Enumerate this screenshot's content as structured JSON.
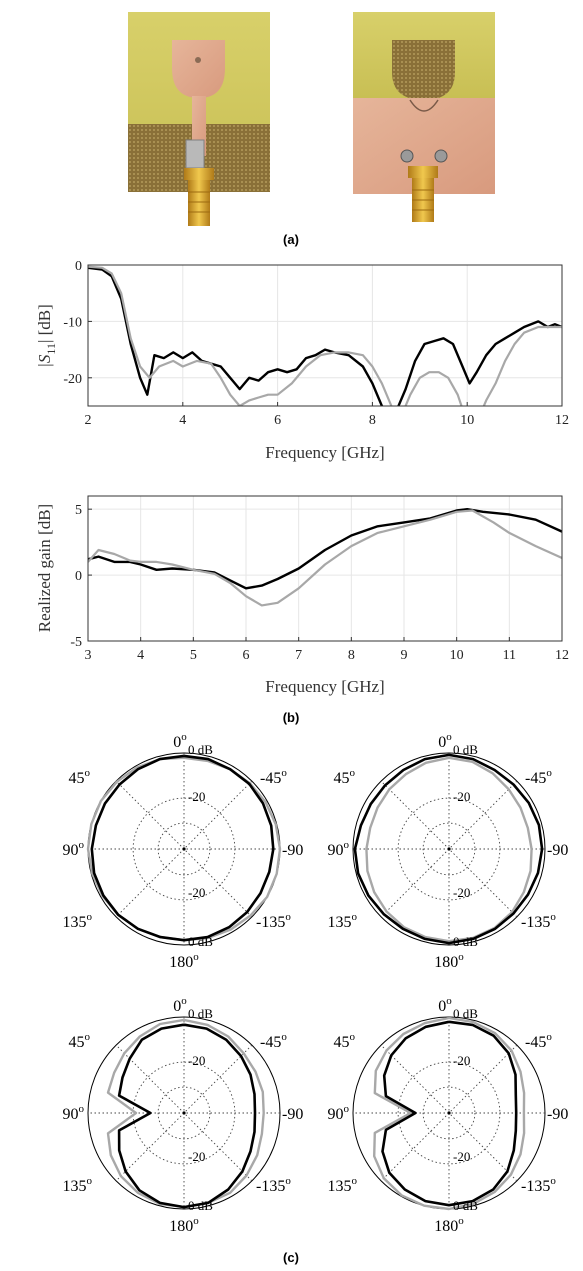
{
  "captions": {
    "a": "(a)",
    "b": "(b)",
    "c": "(c)"
  },
  "colors": {
    "measured": "#000000",
    "simulated": "#a8a8a8",
    "grid": "#e6e6e6"
  },
  "chart_data": [
    {
      "type": "line",
      "xlabel": "Frequency [GHz]",
      "ylabel_main": "|S",
      "ylabel_sub": "11",
      "ylabel_tail": "| [dB]",
      "xlim": [
        2,
        12
      ],
      "ylim": [
        -25,
        0
      ],
      "xticks": [
        2,
        4,
        6,
        8,
        10,
        12
      ],
      "yticks": [
        0,
        -10,
        -20
      ],
      "grid": true,
      "series": [
        {
          "color": "#000000",
          "x": [
            2,
            2.3,
            2.5,
            2.7,
            2.9,
            3.1,
            3.25,
            3.4,
            3.6,
            3.8,
            4.0,
            4.2,
            4.4,
            4.6,
            4.8,
            5.0,
            5.2,
            5.4,
            5.6,
            5.8,
            6.0,
            6.2,
            6.4,
            6.6,
            6.8,
            7.0,
            7.2,
            7.5,
            7.8,
            8.0,
            8.2,
            8.35,
            8.5,
            8.7,
            8.9,
            9.1,
            9.3,
            9.5,
            9.7,
            9.9,
            10.05,
            10.2,
            10.4,
            10.6,
            10.8,
            11.0,
            11.2,
            11.5,
            11.7,
            11.85,
            12.0
          ],
          "y": [
            -0.5,
            -0.8,
            -2,
            -6,
            -14,
            -20,
            -23,
            -16,
            -16.5,
            -15.5,
            -16.5,
            -15.5,
            -17,
            -17.5,
            -18,
            -20,
            -22,
            -20,
            -20.5,
            -19,
            -18.5,
            -19,
            -18.5,
            -16.5,
            -16,
            -15,
            -15.5,
            -16,
            -18,
            -21,
            -25,
            -26,
            -26,
            -22,
            -17,
            -14,
            -13.5,
            -13,
            -14,
            -18,
            -21,
            -19,
            -16,
            -14,
            -13,
            -12,
            -11,
            -10,
            -11,
            -10.5,
            -11
          ]
        },
        {
          "color": "#a8a8a8",
          "x": [
            2,
            2.3,
            2.5,
            2.7,
            2.9,
            3.1,
            3.3,
            3.5,
            3.8,
            4.0,
            4.3,
            4.6,
            4.8,
            5.0,
            5.2,
            5.4,
            5.6,
            5.8,
            6.0,
            6.3,
            6.6,
            6.9,
            7.2,
            7.5,
            7.8,
            8.0,
            8.2,
            8.4,
            8.6,
            8.8,
            9.0,
            9.2,
            9.4,
            9.6,
            9.8,
            10.0,
            10.2,
            10.4,
            10.6,
            10.8,
            11.0,
            11.2,
            11.5,
            11.8,
            12.0
          ],
          "y": [
            -0.3,
            -0.5,
            -1.5,
            -5,
            -13,
            -18,
            -20,
            -18,
            -17,
            -18,
            -17,
            -17.5,
            -20,
            -23,
            -25,
            -24,
            -23.5,
            -23,
            -23,
            -21,
            -18,
            -16,
            -15.5,
            -15.5,
            -16,
            -18,
            -21,
            -25,
            -27,
            -23,
            -20,
            -19,
            -19,
            -20,
            -23,
            -28,
            -28,
            -24,
            -21,
            -17,
            -14,
            -12,
            -11,
            -11,
            -11
          ]
        }
      ]
    },
    {
      "type": "line",
      "xlabel": "Frequency [GHz]",
      "ylabel": "Realized gain [dB]",
      "xlim": [
        3,
        12
      ],
      "ylim": [
        -5,
        6
      ],
      "xticks": [
        3,
        4,
        5,
        6,
        7,
        8,
        9,
        10,
        11,
        12
      ],
      "yticks": [
        5,
        0,
        -5
      ],
      "grid": true,
      "series": [
        {
          "color": "#000000",
          "x": [
            3,
            3.2,
            3.5,
            3.8,
            4.0,
            4.3,
            4.6,
            5.0,
            5.4,
            5.7,
            6.0,
            6.3,
            6.6,
            7.0,
            7.5,
            8.0,
            8.5,
            9.0,
            9.5,
            10.0,
            10.2,
            10.5,
            11.0,
            11.5,
            12.0
          ],
          "y": [
            1.2,
            1.4,
            1.0,
            1.0,
            0.8,
            0.4,
            0.5,
            0.4,
            0.2,
            -0.4,
            -1.0,
            -0.8,
            -0.3,
            0.5,
            1.9,
            3.0,
            3.7,
            4.0,
            4.3,
            4.9,
            5.0,
            4.8,
            4.6,
            4.2,
            3.3
          ]
        },
        {
          "color": "#a8a8a8",
          "x": [
            3,
            3.2,
            3.5,
            3.8,
            4.0,
            4.3,
            4.6,
            5.0,
            5.4,
            5.7,
            6.0,
            6.3,
            6.6,
            7.0,
            7.5,
            8.0,
            8.5,
            9.0,
            9.5,
            10.0,
            10.3,
            10.7,
            11.0,
            11.5,
            12.0
          ],
          "y": [
            1.0,
            1.9,
            1.6,
            1.1,
            1.0,
            1.0,
            0.8,
            0.4,
            0.1,
            -0.6,
            -1.6,
            -2.3,
            -2.1,
            -1.0,
            0.8,
            2.2,
            3.2,
            3.7,
            4.2,
            4.8,
            4.9,
            4.0,
            3.2,
            2.2,
            1.3
          ]
        }
      ]
    },
    {
      "type": "polar",
      "angle_labels": {
        "top": "0",
        "tl": "45",
        "tr": "-45",
        "left": "90",
        "right": "-90",
        "bl": "135",
        "br": "-135",
        "bottom": "180",
        "deg": "o"
      },
      "ring_labels": {
        "zero_top": "0 dB",
        "minus20_top": "-20",
        "minus20_bot": "-20",
        "zero_bot": "0 dB"
      },
      "patterns": [
        {
          "series": [
            {
              "color": "#a8a8a8",
              "r": [
                0.95,
                0.97,
                0.98,
                0.99,
                1.0,
                1.0,
                1.0,
                0.99,
                0.98,
                0.97,
                0.96,
                0.95,
                0.95,
                0.96,
                0.97,
                0.98,
                1.0,
                1.0,
                1.0,
                0.99,
                0.98,
                0.97,
                0.96,
                0.95
              ]
            },
            {
              "color": "#000000",
              "r": [
                0.97,
                0.97,
                0.96,
                0.95,
                0.95,
                0.95,
                0.96,
                0.97,
                0.97,
                0.97,
                0.96,
                0.95,
                0.95,
                0.95,
                0.94,
                0.93,
                0.92,
                0.92,
                0.93,
                0.94,
                0.95,
                0.96,
                0.96,
                0.97
              ]
            }
          ]
        },
        {
          "series": [
            {
              "color": "#a8a8a8",
              "r": [
                0.95,
                0.93,
                0.9,
                0.88,
                0.86,
                0.85,
                0.86,
                0.88,
                0.9,
                0.92,
                0.94,
                0.95,
                0.96,
                0.96,
                0.95,
                0.93,
                0.9,
                0.88,
                0.86,
                0.85,
                0.86,
                0.88,
                0.91,
                0.94
              ]
            },
            {
              "color": "#000000",
              "r": [
                0.98,
                0.97,
                0.95,
                0.94,
                0.94,
                0.95,
                0.98,
                0.98,
                0.97,
                0.96,
                0.96,
                0.97,
                0.98,
                0.97,
                0.96,
                0.95,
                0.95,
                0.96,
                0.97,
                0.97,
                0.96,
                0.95,
                0.95,
                0.97
              ]
            }
          ]
        },
        {
          "series": [
            {
              "color": "#a8a8a8",
              "r": [
                0.97,
                0.96,
                0.92,
                0.88,
                0.84,
                0.82,
                0.5,
                0.82,
                0.88,
                0.93,
                0.96,
                0.98,
                0.98,
                0.97,
                0.96,
                0.92,
                0.88,
                0.84,
                0.83,
                0.85,
                0.86,
                0.88,
                0.92,
                0.95
              ]
            },
            {
              "color": "#000000",
              "r": [
                0.92,
                0.91,
                0.88,
                0.8,
                0.74,
                0.7,
                0.35,
                0.7,
                0.78,
                0.86,
                0.93,
                0.97,
                0.98,
                0.97,
                0.92,
                0.86,
                0.8,
                0.76,
                0.74,
                0.76,
                0.8,
                0.84,
                0.88,
                0.91
              ]
            }
          ]
        },
        {
          "series": [
            {
              "color": "#a8a8a8",
              "r": [
                0.99,
                0.97,
                0.95,
                0.92,
                0.88,
                0.8,
                0.4,
                0.8,
                0.9,
                0.96,
                0.99,
                1.0,
                1.0,
                0.98,
                0.95,
                0.91,
                0.86,
                0.81,
                0.78,
                0.81,
                0.86,
                0.92,
                0.96,
                0.98
              ]
            },
            {
              "color": "#000000",
              "r": [
                0.95,
                0.93,
                0.9,
                0.85,
                0.78,
                0.68,
                0.35,
                0.68,
                0.8,
                0.88,
                0.92,
                0.95,
                0.96,
                0.95,
                0.92,
                0.86,
                0.78,
                0.72,
                0.7,
                0.72,
                0.8,
                0.88,
                0.93,
                0.95
              ]
            }
          ]
        }
      ]
    }
  ]
}
